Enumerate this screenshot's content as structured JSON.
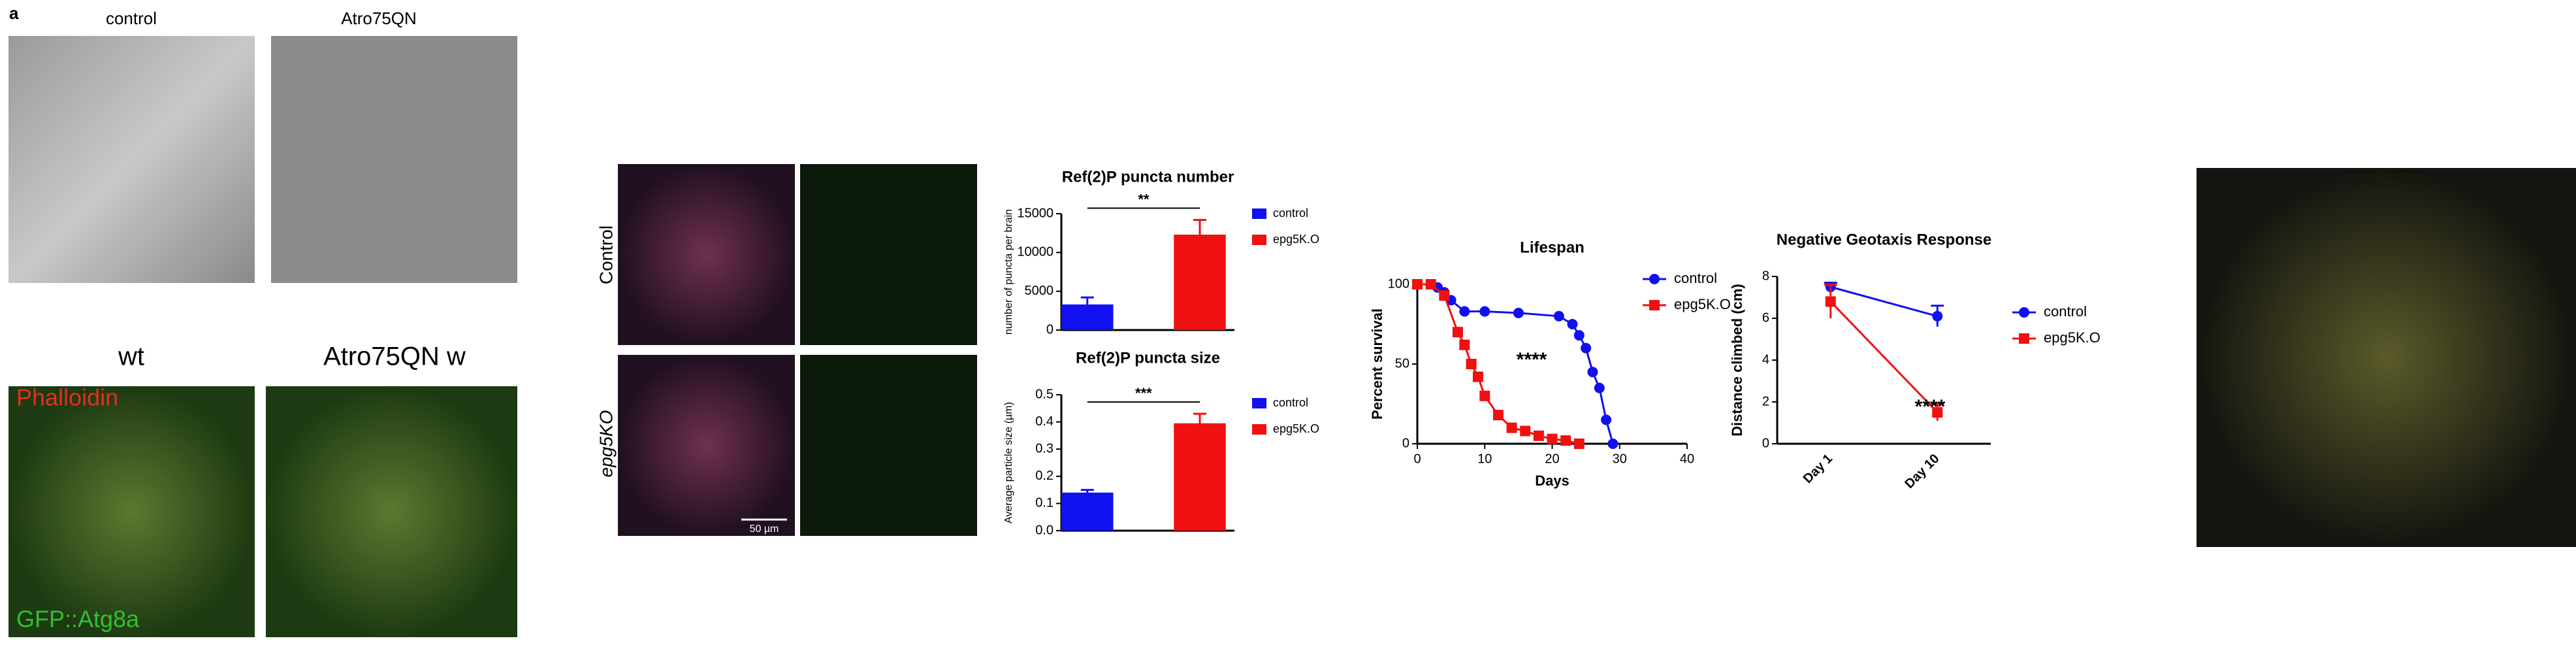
{
  "image_labels": {
    "panel": "a",
    "em_control": "control",
    "em_mutant": "Atro75QN",
    "fluo_control": "wt",
    "fluo_mutant": "Atro75QN w",
    "stain_red": "Phalloidin",
    "stain_green": "GFP::Atg8a",
    "row_control": "Control",
    "row_mutant": "epg5KO",
    "scale_bar": "50 µm"
  },
  "chart_data": [
    {
      "type": "bar",
      "title": "Ref(2)P puncta number",
      "ylabel": "number of puncta per brain",
      "categories": [
        null
      ],
      "series": [
        {
          "name": "control",
          "color": "#1010f0",
          "values": [
            3300
          ],
          "errors": [
            900
          ]
        },
        {
          "name": "epg5K.O",
          "color": "#f01010",
          "values": [
            12300
          ],
          "errors": [
            1900
          ]
        }
      ],
      "ylim": [
        0,
        15000
      ],
      "yticks": [
        0,
        5000,
        10000,
        15000
      ],
      "annotation": "**"
    },
    {
      "type": "bar",
      "title": "Ref(2)P puncta size",
      "ylabel": "Average particle size (µm)",
      "categories": [
        null
      ],
      "series": [
        {
          "name": "control",
          "color": "#1010f0",
          "values": [
            0.14
          ],
          "errors": [
            0.01
          ]
        },
        {
          "name": "epg5K.O",
          "color": "#f01010",
          "values": [
            0.395
          ],
          "errors": [
            0.035
          ]
        }
      ],
      "ylim": [
        0,
        0.5
      ],
      "yticks": [
        {
          "value": 0,
          "label": "0.0"
        },
        0.1,
        0.2,
        0.3,
        0.4,
        0.5
      ],
      "annotation": "***"
    },
    {
      "type": "line",
      "title": "Lifespan",
      "xlabel": "Days",
      "ylabel": "Percent survival",
      "series": [
        {
          "name": "control",
          "color": "#1010f0",
          "marker": "circle",
          "x": [
            0,
            2,
            3,
            4,
            5,
            7,
            10,
            15,
            21,
            23,
            24,
            25,
            26,
            27,
            28,
            29
          ],
          "values": [
            100,
            100,
            98,
            95,
            90,
            83,
            83,
            82,
            80,
            75,
            68,
            60,
            45,
            35,
            15,
            0
          ]
        },
        {
          "name": "epg5K.O",
          "color": "#f01010",
          "marker": "square",
          "x": [
            0,
            2,
            4,
            6,
            7,
            8,
            9,
            10,
            12,
            14,
            16,
            18,
            20,
            22,
            24
          ],
          "values": [
            100,
            100,
            93,
            70,
            62,
            50,
            42,
            30,
            18,
            10,
            8,
            5,
            3,
            2,
            0
          ]
        }
      ],
      "xlim": [
        0,
        40
      ],
      "xticks": [
        0,
        10,
        20,
        30,
        40
      ],
      "ylim": [
        0,
        100
      ],
      "yticks": [
        0,
        50,
        100
      ],
      "annotation": "****"
    },
    {
      "type": "line",
      "title": "Negative Geotaxis Response",
      "ylabel": "Distance climbed (cm)",
      "categories": [
        "Day 1",
        "Day 10"
      ],
      "series": [
        {
          "name": "control",
          "color": "#1010f0",
          "marker": "circle",
          "values": [
            7.5,
            6.1
          ],
          "errors": [
            0.2,
            0.5
          ]
        },
        {
          "name": "epg5K.O",
          "color": "#f01010",
          "marker": "square",
          "values": [
            6.8,
            1.5
          ],
          "errors": [
            0.8,
            0.4
          ]
        }
      ],
      "ylim": [
        0,
        8
      ],
      "yticks": [
        0,
        2,
        4,
        6,
        8
      ],
      "annotation": "****"
    }
  ]
}
